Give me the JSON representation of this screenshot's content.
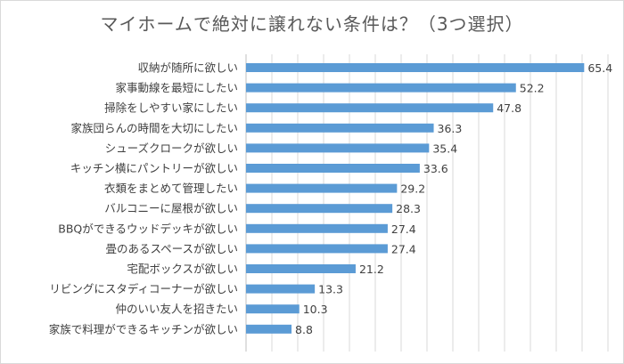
{
  "chart_data": {
    "type": "bar",
    "orientation": "horizontal",
    "title": "マイホームで絶対に譲れない条件は？（3つ選択）",
    "categories": [
      "収納が随所に欲しい",
      "家事動線を最短にしたい",
      "掃除をしやすい家にしたい",
      "家族団らんの時間を大切にしたい",
      "シューズクロークが欲しい",
      "キッチン横にパントリーが欲しい",
      "衣類をまとめて管理したい",
      "バルコニーに屋根が欲しい",
      "BBQができるウッドデッキが欲しい",
      "畳のあるスペースが欲しい",
      "宅配ボックスが欲しい",
      "リビングにスタディコーナーが欲しい",
      "仲のいい友人を招きたい",
      "家族で料理ができるキッチンが欲しい"
    ],
    "values": [
      65.4,
      52.2,
      47.8,
      36.3,
      35.4,
      33.6,
      29.2,
      28.3,
      27.4,
      27.4,
      21.2,
      13.3,
      10.3,
      8.8
    ],
    "value_labels": [
      "65.4",
      "52.2",
      "47.8",
      "36.3",
      "35.4",
      "33.6",
      "29.2",
      "28.3",
      "27.4",
      "27.4",
      "21.2",
      "13.3",
      "10.3",
      "8.8"
    ],
    "xlim": [
      0,
      70
    ],
    "grid": true,
    "bar_color": "#5b9bd5",
    "grid_color": "#d9d9d9"
  }
}
